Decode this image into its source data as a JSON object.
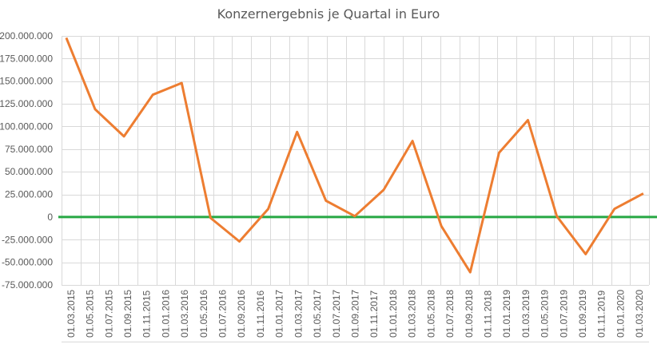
{
  "chart_data": {
    "type": "line",
    "title": "Konzernergebnis je Quartal in Euro",
    "xlabel": "",
    "ylabel": "",
    "ylim": [
      -75000000,
      200000000
    ],
    "yticks": [
      200000000,
      175000000,
      150000000,
      125000000,
      100000000,
      75000000,
      50000000,
      25000000,
      0,
      -25000000,
      -50000000,
      -75000000
    ],
    "ytick_labels": [
      "200.000.000",
      "175.000.000",
      "150.000.000",
      "125.000.000",
      "100.000.000",
      "75.000.000",
      "50.000.000",
      "25.000.000",
      "0",
      "-25.000.000",
      "-50.000.000",
      "-75.000.000"
    ],
    "xtick_labels": [
      "01.03.2015",
      "01.05.2015",
      "01.07.2015",
      "01.09.2015",
      "01.11.2015",
      "01.01.2016",
      "01.03.2016",
      "01.05.2016",
      "01.07.2016",
      "01.09.2016",
      "01.11.2016",
      "01.01.2017",
      "01.03.2017",
      "01.05.2017",
      "01.07.2017",
      "01.09.2017",
      "01.11.2017",
      "01.01.2018",
      "01.03.2018",
      "01.05.2018",
      "01.07.2018",
      "01.09.2018",
      "01.11.2018",
      "01.01.2019",
      "01.03.2019",
      "01.05.2019",
      "01.07.2019",
      "01.09.2019",
      "01.11.2019",
      "01.01.2020",
      "01.03.2020"
    ],
    "grid": true,
    "legend": "none",
    "series": [
      {
        "name": "Konzernergebnis",
        "color": "#ED7D31",
        "x": [
          "2015-03-31",
          "2015-06-30",
          "2015-09-30",
          "2015-12-31",
          "2016-03-31",
          "2016-06-30",
          "2016-09-30",
          "2016-12-31",
          "2017-03-31",
          "2017-06-30",
          "2017-09-30",
          "2017-12-31",
          "2018-03-31",
          "2018-06-30",
          "2018-09-30",
          "2018-12-31",
          "2019-03-31",
          "2019-06-30",
          "2019-09-30",
          "2019-12-31",
          "2020-03-31"
        ],
        "values": [
          198000000,
          119000000,
          89000000,
          135000000,
          148000000,
          -1000000,
          -27000000,
          9000000,
          94000000,
          18000000,
          1000000,
          30000000,
          84000000,
          -10000000,
          -61000000,
          71000000,
          107000000,
          1000000,
          -41000000,
          9000000,
          26000000
        ]
      },
      {
        "name": "Nulllinie",
        "color": "#27A844",
        "values_constant": 0
      }
    ]
  },
  "colors": {
    "grid": "#D9D9D9",
    "text": "#595959",
    "line": "#ED7D31",
    "zero_line": "#27A844"
  }
}
